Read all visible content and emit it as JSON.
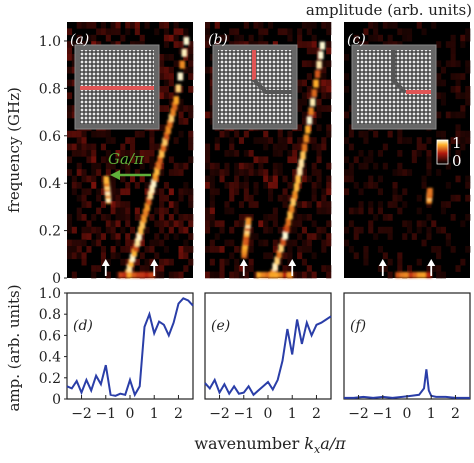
{
  "colors": {
    "heat_bg": "#000000",
    "heat_mid": "#b3190f",
    "heat_hot": "#ffd23c",
    "line": "#2a3ea8",
    "arrow_green": "#5fb03a",
    "waveguide": "#e05555",
    "lattice_bg": "#4c4c4c",
    "lattice_dot": "#e8e8e8"
  },
  "icons": {
    "excitation_marker": "up-arrow-icon",
    "lattice_inset": "magnonic-lattice-icon"
  },
  "colorbar": {
    "title": "amplitude (arb. units)",
    "max_label": "1",
    "min_label": "0"
  },
  "annotation": {
    "shift_label": "Ga/π"
  },
  "chart_data": [
    {
      "type": "heatmap",
      "panel_label": "(a)",
      "ylabel": "frequency (GHz)",
      "xlim": [
        -2.6,
        2.6
      ],
      "ylim": [
        0,
        1.08
      ],
      "ytick_labels": [
        "0",
        "0.2",
        "0.4",
        "0.6",
        "0.8",
        "1.0"
      ],
      "ridges": [
        {
          "k": [
            -0.1,
            0.3,
            0.7,
            1.1,
            1.5,
            1.9,
            2.4
          ],
          "f": [
            0.02,
            0.15,
            0.3,
            0.45,
            0.6,
            0.75,
            1.05
          ]
        },
        {
          "k": [
            -0.9,
            -0.95,
            -1.0
          ],
          "f": [
            0.33,
            0.38,
            0.42
          ]
        }
      ]
    },
    {
      "type": "heatmap",
      "panel_label": "(b)",
      "xlim": [
        -2.6,
        2.6
      ],
      "ylim": [
        0,
        1.08
      ],
      "ridges": [
        {
          "k": [
            0.2,
            0.7,
            1.1,
            1.5,
            1.9,
            2.3
          ],
          "f": [
            0.02,
            0.18,
            0.35,
            0.55,
            0.78,
            1.02
          ]
        },
        {
          "k": [
            -1.0,
            -0.9,
            -0.8
          ],
          "f": [
            0.1,
            0.18,
            0.25
          ]
        }
      ]
    },
    {
      "type": "heatmap",
      "panel_label": "(c)",
      "xlim": [
        -2.6,
        2.6
      ],
      "ylim": [
        0,
        1.08
      ],
      "ridges": [
        {
          "k": [
            0.9,
            0.95
          ],
          "f": [
            0.33,
            0.37
          ]
        }
      ]
    },
    {
      "type": "line",
      "panel_label": "(d)",
      "ylabel": "amp. (arb. units)",
      "xlim": [
        -2.6,
        2.6
      ],
      "ylim": [
        0,
        1.0
      ],
      "x": [
        -2.6,
        -2.4,
        -2.2,
        -2.0,
        -1.8,
        -1.6,
        -1.4,
        -1.2,
        -1.0,
        -0.8,
        -0.6,
        -0.4,
        -0.2,
        0.0,
        0.2,
        0.4,
        0.6,
        0.8,
        1.0,
        1.2,
        1.4,
        1.6,
        1.8,
        2.0,
        2.2,
        2.4,
        2.6
      ],
      "y": [
        0.12,
        0.1,
        0.17,
        0.06,
        0.18,
        0.08,
        0.22,
        0.14,
        0.32,
        0.04,
        0.03,
        0.05,
        0.04,
        0.18,
        0.04,
        0.12,
        0.68,
        0.8,
        0.62,
        0.73,
        0.7,
        0.6,
        0.72,
        0.9,
        0.95,
        0.93,
        0.88
      ],
      "ytick_labels": [
        "0",
        "0.2",
        "0.4",
        "0.6",
        "0.8",
        "1.0"
      ]
    },
    {
      "type": "line",
      "panel_label": "(e)",
      "xlim": [
        -2.6,
        2.6
      ],
      "ylim": [
        0,
        1.0
      ],
      "x": [
        -2.6,
        -2.4,
        -2.2,
        -2.0,
        -1.8,
        -1.6,
        -1.4,
        -1.2,
        -1.0,
        -0.8,
        -0.6,
        -0.4,
        -0.2,
        0.0,
        0.2,
        0.4,
        0.6,
        0.8,
        1.0,
        1.2,
        1.4,
        1.6,
        1.8,
        2.0,
        2.2,
        2.4,
        2.6
      ],
      "y": [
        0.15,
        0.1,
        0.18,
        0.06,
        0.14,
        0.05,
        0.12,
        0.05,
        0.06,
        0.12,
        0.04,
        0.08,
        0.12,
        0.16,
        0.09,
        0.18,
        0.36,
        0.66,
        0.42,
        0.75,
        0.52,
        0.72,
        0.6,
        0.7,
        0.72,
        0.75,
        0.78
      ]
    },
    {
      "type": "line",
      "panel_label": "(f)",
      "xlim": [
        -2.6,
        2.6
      ],
      "ylim": [
        0,
        1.0
      ],
      "x": [
        -2.6,
        -2.2,
        -1.8,
        -1.4,
        -1.0,
        -0.6,
        -0.2,
        0.2,
        0.5,
        0.7,
        0.8,
        0.9,
        1.0,
        1.2,
        1.6,
        2.0,
        2.6
      ],
      "y": [
        0.01,
        0.01,
        0.02,
        0.01,
        0.02,
        0.01,
        0.02,
        0.03,
        0.04,
        0.1,
        0.28,
        0.08,
        0.03,
        0.02,
        0.02,
        0.01,
        0.01
      ]
    }
  ],
  "x_axis": {
    "tick_values": [
      -2,
      -1,
      0,
      1,
      2
    ],
    "tick_labels": [
      "−2",
      "−1",
      "0",
      "1",
      "2"
    ],
    "label_prefix": "wavenumber ",
    "label_k": "k",
    "label_sub": "x",
    "label_suffix": "a/π"
  },
  "excitation_markers_k": [
    -1,
    1
  ]
}
